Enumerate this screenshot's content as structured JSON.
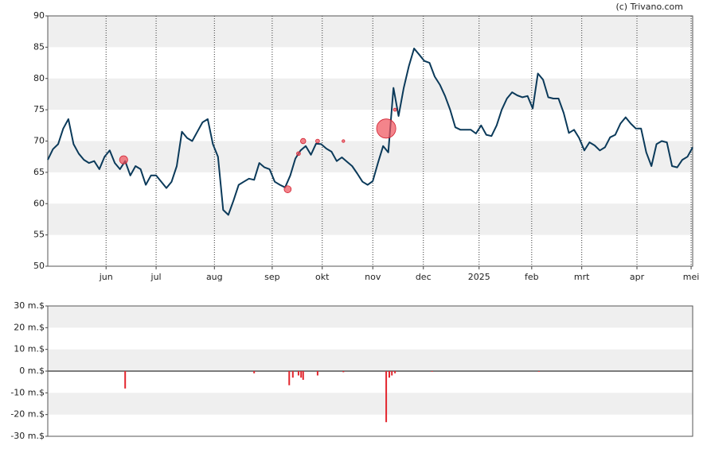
{
  "chart_data": [
    {
      "type": "line",
      "credit": "(c) Trivano.com",
      "xlim": [
        0,
        125
      ],
      "xticks": [
        {
          "value": 11.3,
          "label": "jun"
        },
        {
          "value": 21,
          "label": "jul"
        },
        {
          "value": 32.3,
          "label": "aug"
        },
        {
          "value": 43.5,
          "label": "sep"
        },
        {
          "value": 53.2,
          "label": "okt"
        },
        {
          "value": 63,
          "label": "nov"
        },
        {
          "value": 72.8,
          "label": "dec"
        },
        {
          "value": 83.6,
          "label": "2025"
        },
        {
          "value": 93.8,
          "label": "feb"
        },
        {
          "value": 103.5,
          "label": "mrt"
        },
        {
          "value": 114.2,
          "label": "apr"
        },
        {
          "value": 124.7,
          "label": "mei"
        }
      ],
      "ylim": [
        50,
        90
      ],
      "yticks": [
        50,
        55,
        60,
        65,
        70,
        75,
        80,
        85,
        90
      ],
      "xgrid": true,
      "series": [
        {
          "color": "#0b3a5a",
          "values": [
            67,
            68.7,
            69.5,
            72,
            73.5,
            69.5,
            68,
            67,
            66.5,
            66.8,
            65.5,
            67.5,
            68.5,
            66.5,
            65.5,
            66.8,
            64.5,
            66,
            65.5,
            63,
            64.5,
            64.5,
            63.5,
            62.5,
            63.5,
            66,
            71.5,
            70.5,
            70,
            71.5,
            73,
            73.5,
            69.5,
            67.5,
            59,
            58.2,
            60.5,
            63,
            63.5,
            64,
            63.8,
            66.5,
            65.8,
            65.5,
            63.5,
            63,
            62.6,
            64.5,
            67.2,
            68.5,
            69.2,
            67.8,
            69.6,
            69.5,
            68.8,
            68.3,
            66.8,
            67.4,
            66.7,
            66,
            64.8,
            63.5,
            63,
            63.6,
            66.5,
            69.2,
            68.2,
            78.5,
            74,
            78.5,
            82,
            84.8,
            83.8,
            82.8,
            82.5,
            80.3,
            79,
            77.2,
            75,
            72.2,
            71.8,
            71.8,
            71.8,
            71.2,
            72.5,
            71,
            70.8,
            72.5,
            75,
            76.8,
            77.8,
            77.3,
            77,
            77.2,
            75.2,
            80.8,
            79.8,
            77,
            76.8,
            76.8,
            74.5,
            71.3,
            71.8,
            70.5,
            68.5,
            69.8,
            69.3,
            68.5,
            69,
            70.6,
            71,
            72.8,
            73.8,
            72.8,
            72,
            72,
            68.2,
            66,
            69.5,
            70,
            69.8,
            66,
            65.8,
            67,
            67.5,
            69
          ]
        }
      ],
      "bubbles": {
        "color": "#f0505a",
        "x": [
          14.7,
          46.5,
          49.5,
          65.6,
          48.6,
          52.3,
          67.3,
          57.3
        ],
        "y": [
          67,
          62.3,
          70,
          72,
          68,
          70,
          75,
          70
        ],
        "size": [
          8,
          6.5,
          4,
          23.5,
          2,
          2,
          1,
          0.5
        ]
      }
    },
    {
      "type": "bar",
      "xlim": [
        0,
        125
      ],
      "ylim": [
        -30,
        30
      ],
      "yticks": [
        {
          "value": -30,
          "label": "-30 m.$"
        },
        {
          "value": -20,
          "label": "-20 m.$"
        },
        {
          "value": -10,
          "label": "-10 m.$"
        },
        {
          "value": 0,
          "label": "0 m.$"
        },
        {
          "value": 10,
          "label": "10 m.$"
        },
        {
          "value": 20,
          "label": "20 m.$"
        },
        {
          "value": 30,
          "label": "30 m.$"
        }
      ],
      "color": "#e3262e",
      "x": [
        15,
        40,
        46.8,
        47.5,
        48.6,
        49.1,
        49.5,
        52.3,
        57.3,
        65.6,
        66.2,
        66.7,
        67.3,
        74.5,
        95.2
      ],
      "values": [
        -8,
        -1,
        -6.5,
        -3,
        -2,
        -3,
        -4,
        -2,
        -0.5,
        -23.5,
        -3,
        -2,
        -1,
        -0.3,
        -0.3
      ]
    }
  ]
}
